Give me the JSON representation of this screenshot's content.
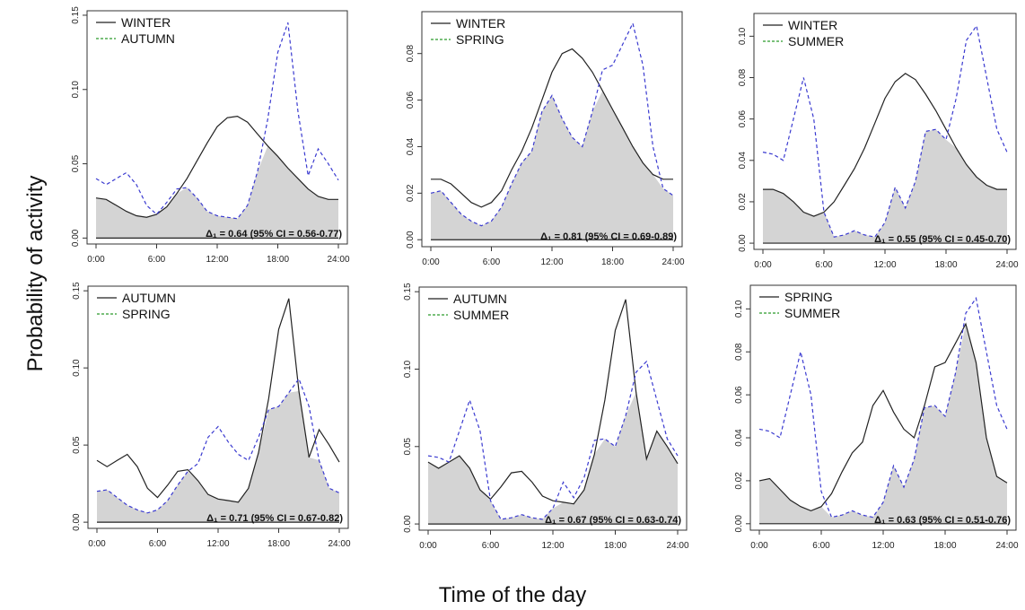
{
  "figure": {
    "ylabel": "Probability of activity",
    "xlabel": "Time of the day",
    "colors": {
      "solid": "#222222",
      "dashed": "#3a3ad0",
      "overlap": "#d4d4d4",
      "legend_dash": "#2a9a2a"
    },
    "x_ticks": [
      "0:00",
      "6:00",
      "12:00",
      "18:00",
      "24:00"
    ]
  },
  "chart_data": [
    {
      "type": "area",
      "series": [
        {
          "name": "WINTER",
          "style": "solid",
          "x": [
            0,
            1,
            2,
            3,
            4,
            5,
            6,
            7,
            8,
            9,
            10,
            11,
            12,
            13,
            14,
            15,
            16,
            17,
            18,
            19,
            20,
            21,
            22,
            23,
            24
          ],
          "values": [
            0.027,
            0.026,
            0.022,
            0.018,
            0.015,
            0.014,
            0.016,
            0.021,
            0.03,
            0.04,
            0.052,
            0.064,
            0.075,
            0.081,
            0.082,
            0.078,
            0.07,
            0.062,
            0.055,
            0.047,
            0.04,
            0.033,
            0.028,
            0.026,
            0.026
          ]
        },
        {
          "name": "AUTUMN",
          "style": "dashed",
          "x": [
            0,
            1,
            2,
            3,
            4,
            5,
            6,
            7,
            8,
            9,
            10,
            11,
            12,
            13,
            14,
            15,
            16,
            17,
            18,
            19,
            20,
            21,
            22,
            23,
            24
          ],
          "values": [
            0.04,
            0.036,
            0.04,
            0.044,
            0.036,
            0.022,
            0.016,
            0.024,
            0.033,
            0.034,
            0.027,
            0.018,
            0.015,
            0.014,
            0.013,
            0.022,
            0.045,
            0.08,
            0.125,
            0.145,
            0.085,
            0.042,
            0.06,
            0.05,
            0.039
          ]
        }
      ],
      "annotation": "Δ₁ = 0.64 (95% CI = 0.56-0.77)",
      "yticks": [
        0,
        0.05,
        0.1,
        0.15
      ],
      "ytick_labels": [
        "0.00",
        "0.05",
        "0.10",
        "0.15"
      ],
      "xlim": [
        0,
        24
      ],
      "ylim": [
        -0.004,
        0.153
      ]
    },
    {
      "type": "area",
      "series": [
        {
          "name": "WINTER",
          "style": "solid",
          "x": [
            0,
            1,
            2,
            3,
            4,
            5,
            6,
            7,
            8,
            9,
            10,
            11,
            12,
            13,
            14,
            15,
            16,
            17,
            18,
            19,
            20,
            21,
            22,
            23,
            24
          ],
          "values": [
            0.026,
            0.026,
            0.024,
            0.02,
            0.016,
            0.014,
            0.016,
            0.021,
            0.03,
            0.038,
            0.048,
            0.06,
            0.072,
            0.08,
            0.082,
            0.078,
            0.072,
            0.064,
            0.056,
            0.048,
            0.04,
            0.033,
            0.028,
            0.026,
            0.026
          ]
        },
        {
          "name": "SPRING",
          "style": "dashed",
          "x": [
            0,
            1,
            2,
            3,
            4,
            5,
            6,
            7,
            8,
            9,
            10,
            11,
            12,
            13,
            14,
            15,
            16,
            17,
            18,
            19,
            20,
            21,
            22,
            23,
            24
          ],
          "values": [
            0.02,
            0.021,
            0.016,
            0.011,
            0.008,
            0.006,
            0.008,
            0.014,
            0.024,
            0.033,
            0.038,
            0.055,
            0.062,
            0.052,
            0.044,
            0.04,
            0.055,
            0.073,
            0.075,
            0.084,
            0.093,
            0.075,
            0.04,
            0.022,
            0.019
          ]
        }
      ],
      "annotation": "Δ₁ = 0.81 (95% CI = 0.69-0.89)",
      "yticks": [
        0,
        0.02,
        0.04,
        0.06,
        0.08
      ],
      "ytick_labels": [
        "0.00",
        "0.02",
        "0.04",
        "0.06",
        "0.08"
      ],
      "xlim": [
        0,
        24
      ],
      "ylim": [
        -0.003,
        0.098
      ]
    },
    {
      "type": "area",
      "series": [
        {
          "name": "WINTER",
          "style": "solid",
          "x": [
            0,
            1,
            2,
            3,
            4,
            5,
            6,
            7,
            8,
            9,
            10,
            11,
            12,
            13,
            14,
            15,
            16,
            17,
            18,
            19,
            20,
            21,
            22,
            23,
            24
          ],
          "values": [
            0.026,
            0.026,
            0.024,
            0.02,
            0.015,
            0.013,
            0.015,
            0.02,
            0.028,
            0.036,
            0.046,
            0.058,
            0.07,
            0.078,
            0.082,
            0.079,
            0.072,
            0.064,
            0.055,
            0.046,
            0.038,
            0.032,
            0.028,
            0.026,
            0.026
          ]
        },
        {
          "name": "SUMMER",
          "style": "dashed",
          "x": [
            0,
            1,
            2,
            3,
            4,
            5,
            6,
            7,
            8,
            9,
            10,
            11,
            12,
            13,
            14,
            15,
            16,
            17,
            18,
            19,
            20,
            21,
            22,
            23,
            24
          ],
          "values": [
            0.044,
            0.043,
            0.04,
            0.06,
            0.08,
            0.06,
            0.015,
            0.003,
            0.004,
            0.006,
            0.004,
            0.003,
            0.01,
            0.027,
            0.017,
            0.03,
            0.054,
            0.055,
            0.05,
            0.07,
            0.098,
            0.105,
            0.08,
            0.055,
            0.044
          ]
        }
      ],
      "annotation": "Δ₁ = 0.55 (95% CI = 0.45-0.70)",
      "yticks": [
        0,
        0.02,
        0.04,
        0.06,
        0.08,
        0.1
      ],
      "ytick_labels": [
        "0.00",
        "0.02",
        "0.04",
        "0.06",
        "0.08",
        "0.10"
      ],
      "xlim": [
        0,
        24
      ],
      "ylim": [
        -0.003,
        0.111
      ]
    },
    {
      "type": "area",
      "series": [
        {
          "name": "AUTUMN",
          "style": "solid",
          "x": [
            0,
            1,
            2,
            3,
            4,
            5,
            6,
            7,
            8,
            9,
            10,
            11,
            12,
            13,
            14,
            15,
            16,
            17,
            18,
            19,
            20,
            21,
            22,
            23,
            24
          ],
          "values": [
            0.04,
            0.036,
            0.04,
            0.044,
            0.036,
            0.022,
            0.016,
            0.024,
            0.033,
            0.034,
            0.027,
            0.018,
            0.015,
            0.014,
            0.013,
            0.022,
            0.045,
            0.08,
            0.125,
            0.145,
            0.085,
            0.042,
            0.06,
            0.05,
            0.039
          ]
        },
        {
          "name": "SPRING",
          "style": "dashed",
          "x": [
            0,
            1,
            2,
            3,
            4,
            5,
            6,
            7,
            8,
            9,
            10,
            11,
            12,
            13,
            14,
            15,
            16,
            17,
            18,
            19,
            20,
            21,
            22,
            23,
            24
          ],
          "values": [
            0.02,
            0.021,
            0.016,
            0.011,
            0.008,
            0.006,
            0.008,
            0.014,
            0.024,
            0.033,
            0.038,
            0.055,
            0.062,
            0.052,
            0.044,
            0.04,
            0.055,
            0.073,
            0.075,
            0.084,
            0.093,
            0.075,
            0.04,
            0.022,
            0.019
          ]
        }
      ],
      "annotation": "Δ₁ = 0.71 (95% CI = 0.67-0.82)",
      "yticks": [
        0,
        0.05,
        0.1,
        0.15
      ],
      "ytick_labels": [
        "0.00",
        "0.05",
        "0.10",
        "0.15"
      ],
      "xlim": [
        0,
        24
      ],
      "ylim": [
        -0.004,
        0.153
      ]
    },
    {
      "type": "area",
      "series": [
        {
          "name": "AUTUMN",
          "style": "solid",
          "x": [
            0,
            1,
            2,
            3,
            4,
            5,
            6,
            7,
            8,
            9,
            10,
            11,
            12,
            13,
            14,
            15,
            16,
            17,
            18,
            19,
            20,
            21,
            22,
            23,
            24
          ],
          "values": [
            0.04,
            0.036,
            0.04,
            0.044,
            0.036,
            0.022,
            0.016,
            0.024,
            0.033,
            0.034,
            0.027,
            0.018,
            0.015,
            0.014,
            0.013,
            0.022,
            0.045,
            0.08,
            0.125,
            0.145,
            0.085,
            0.042,
            0.06,
            0.05,
            0.039
          ]
        },
        {
          "name": "SUMMER",
          "style": "dashed",
          "x": [
            0,
            1,
            2,
            3,
            4,
            5,
            6,
            7,
            8,
            9,
            10,
            11,
            12,
            13,
            14,
            15,
            16,
            17,
            18,
            19,
            20,
            21,
            22,
            23,
            24
          ],
          "values": [
            0.044,
            0.043,
            0.04,
            0.06,
            0.08,
            0.06,
            0.015,
            0.003,
            0.004,
            0.006,
            0.004,
            0.003,
            0.01,
            0.027,
            0.017,
            0.03,
            0.054,
            0.055,
            0.05,
            0.07,
            0.098,
            0.105,
            0.08,
            0.055,
            0.044
          ]
        }
      ],
      "annotation": "Δ₁ = 0.67 (95% CI = 0.63-0.74)",
      "yticks": [
        0,
        0.05,
        0.1,
        0.15
      ],
      "ytick_labels": [
        "0.00",
        "0.05",
        "0.10",
        "0.15"
      ],
      "xlim": [
        0,
        24
      ],
      "ylim": [
        -0.004,
        0.153
      ]
    },
    {
      "type": "area",
      "series": [
        {
          "name": "SPRING",
          "style": "solid",
          "x": [
            0,
            1,
            2,
            3,
            4,
            5,
            6,
            7,
            8,
            9,
            10,
            11,
            12,
            13,
            14,
            15,
            16,
            17,
            18,
            19,
            20,
            21,
            22,
            23,
            24
          ],
          "values": [
            0.02,
            0.021,
            0.016,
            0.011,
            0.008,
            0.006,
            0.008,
            0.014,
            0.024,
            0.033,
            0.038,
            0.055,
            0.062,
            0.052,
            0.044,
            0.04,
            0.055,
            0.073,
            0.075,
            0.084,
            0.093,
            0.075,
            0.04,
            0.022,
            0.019
          ]
        },
        {
          "name": "SUMMER",
          "style": "dashed",
          "x": [
            0,
            1,
            2,
            3,
            4,
            5,
            6,
            7,
            8,
            9,
            10,
            11,
            12,
            13,
            14,
            15,
            16,
            17,
            18,
            19,
            20,
            21,
            22,
            23,
            24
          ],
          "values": [
            0.044,
            0.043,
            0.04,
            0.06,
            0.08,
            0.06,
            0.015,
            0.003,
            0.004,
            0.006,
            0.004,
            0.003,
            0.01,
            0.027,
            0.017,
            0.03,
            0.054,
            0.055,
            0.05,
            0.07,
            0.098,
            0.105,
            0.08,
            0.055,
            0.044
          ]
        }
      ],
      "annotation": "Δ₁ = 0.63 (95% CI = 0.51-0.76)",
      "yticks": [
        0,
        0.02,
        0.04,
        0.06,
        0.08,
        0.1
      ],
      "ytick_labels": [
        "0.00",
        "0.02",
        "0.04",
        "0.06",
        "0.08",
        "0.10"
      ],
      "xlim": [
        0,
        24
      ],
      "ylim": [
        -0.003,
        0.111
      ]
    }
  ]
}
